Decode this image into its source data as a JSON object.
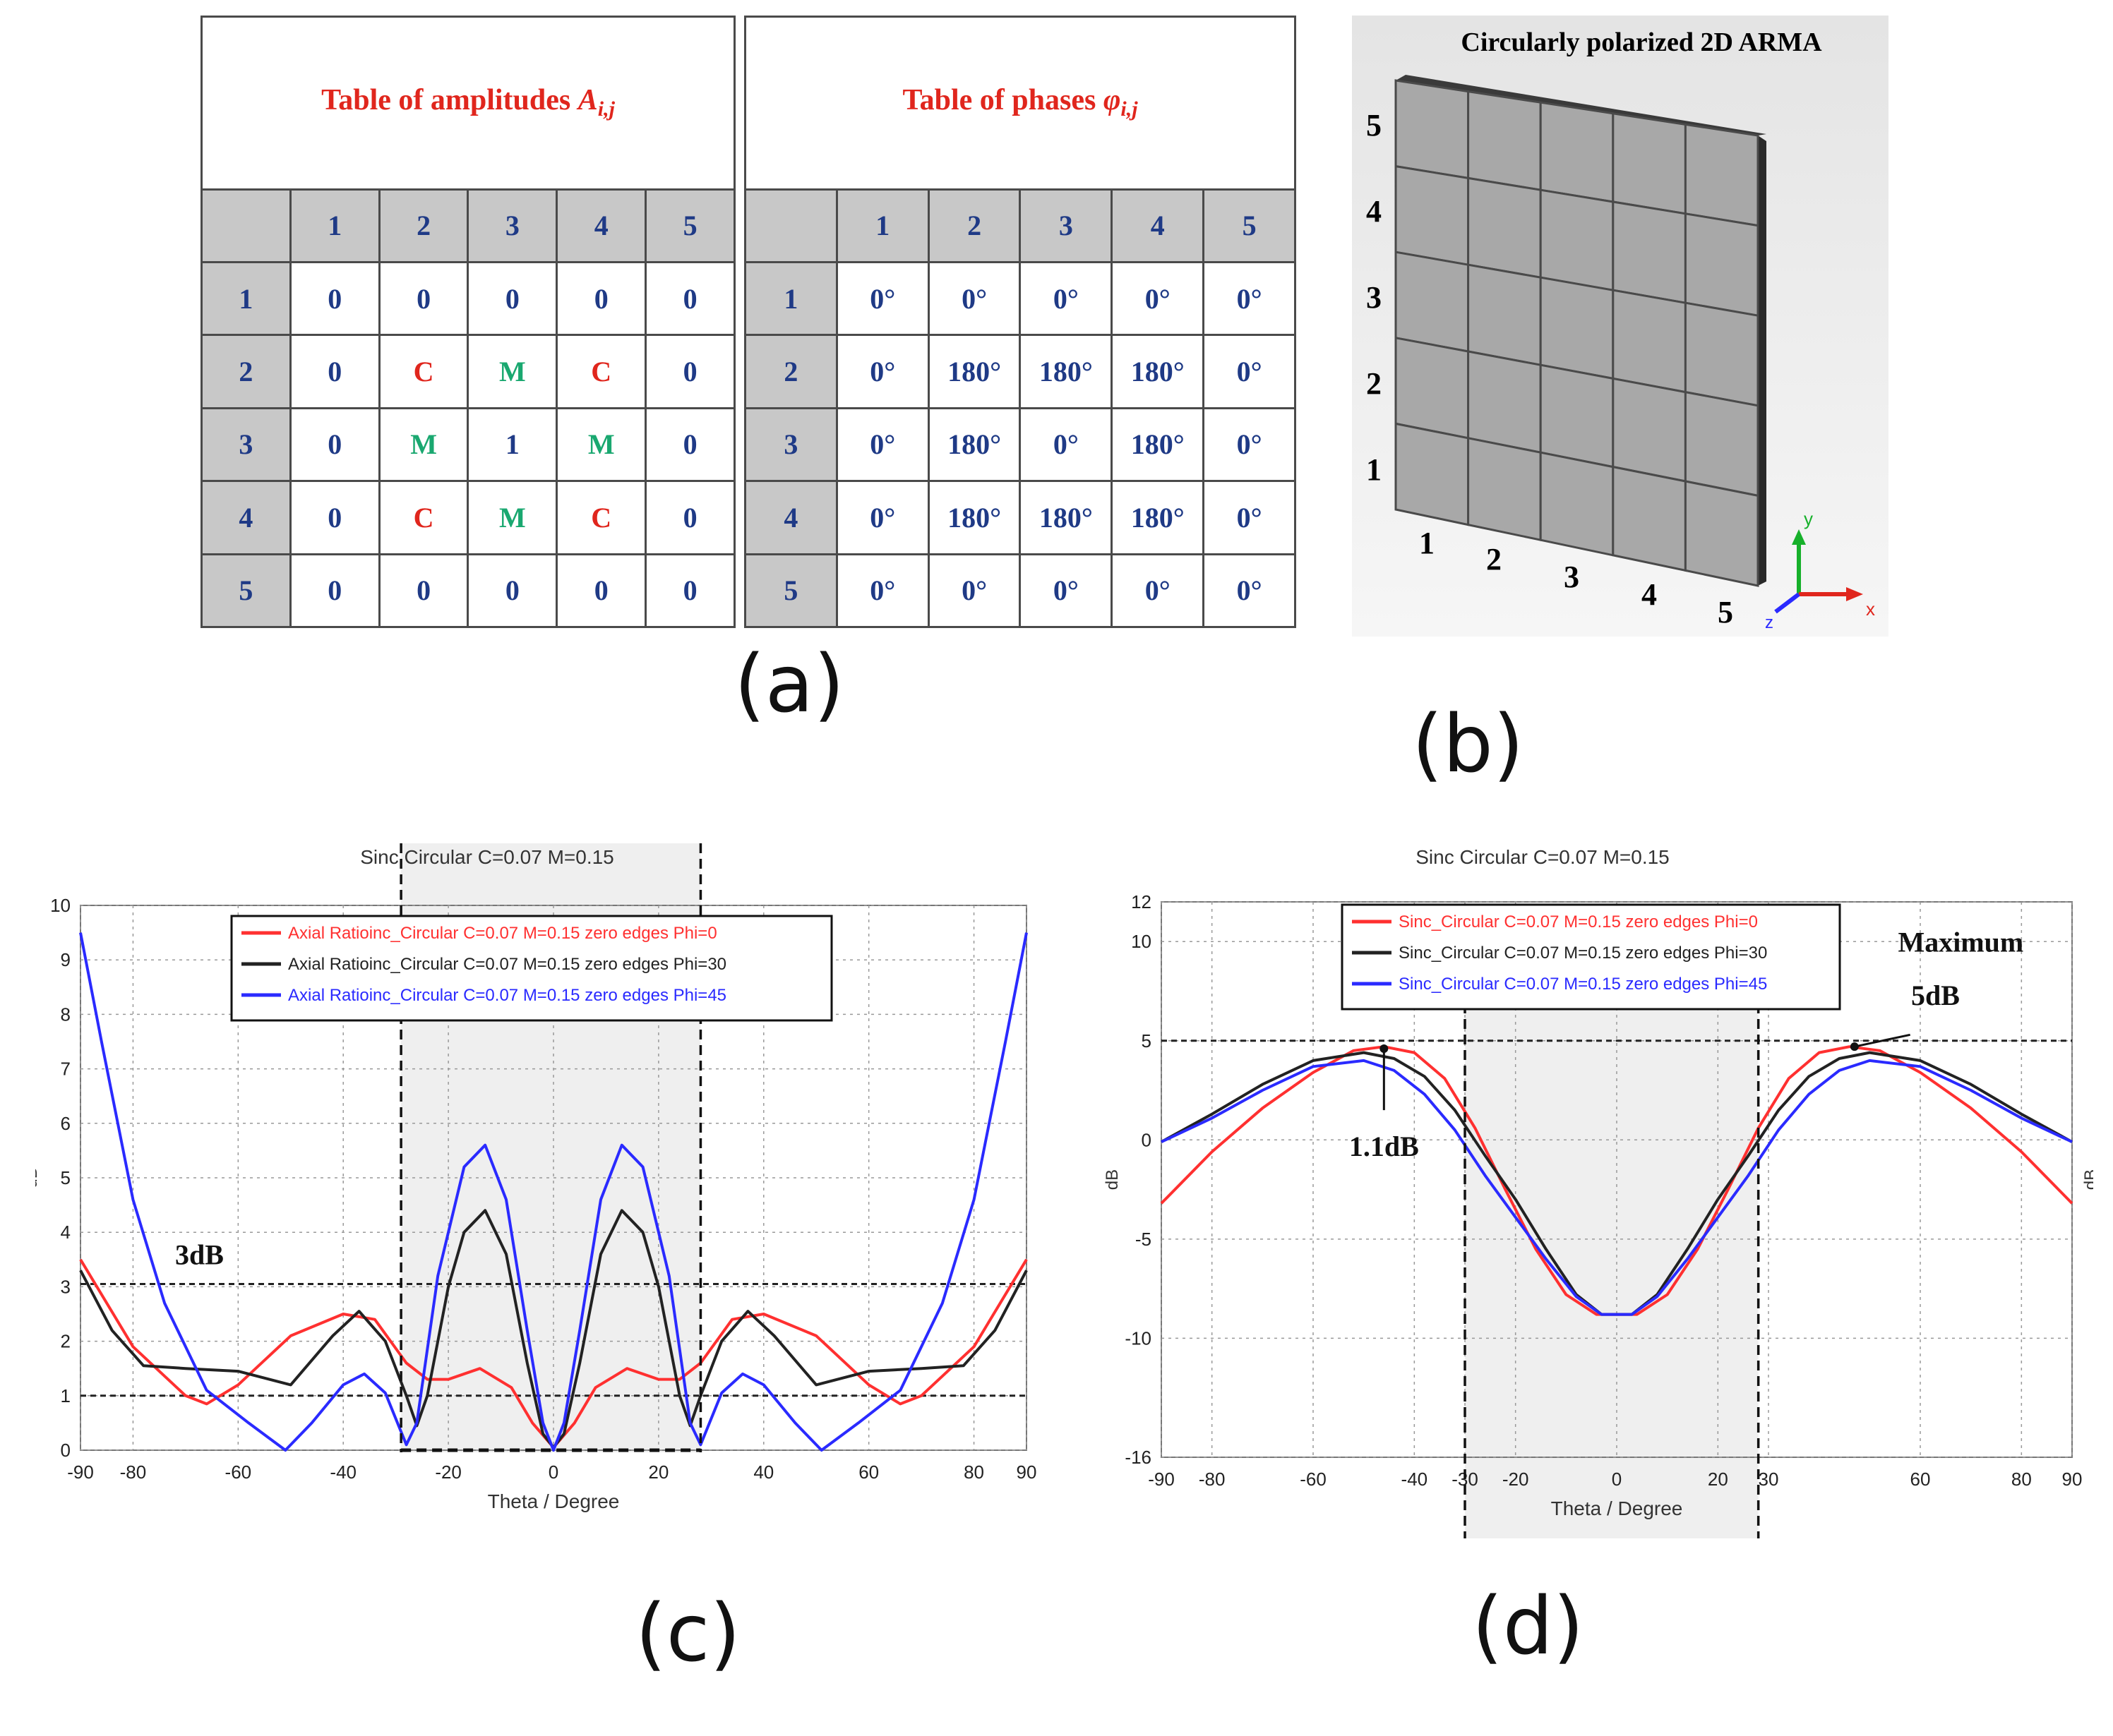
{
  "panel_a": {
    "amp_title": "Table of  amplitudes",
    "amp_symbol": "A",
    "amp_sub": "i,j",
    "phase_title": "Table of  phases",
    "phase_symbol": "φ",
    "phase_sub": "i,j",
    "col_headers": [
      "1",
      "2",
      "3",
      "4",
      "5"
    ],
    "row_headers": [
      "1",
      "2",
      "3",
      "4",
      "5"
    ],
    "amplitudes": [
      [
        "0",
        "0",
        "0",
        "0",
        "0"
      ],
      [
        "0",
        "C",
        "M",
        "C",
        "0"
      ],
      [
        "0",
        "M",
        "1",
        "M",
        "0"
      ],
      [
        "0",
        "C",
        "M",
        "C",
        "0"
      ],
      [
        "0",
        "0",
        "0",
        "0",
        "0"
      ]
    ],
    "phases": [
      [
        "0°",
        "0°",
        "0°",
        "0°",
        "0°"
      ],
      [
        "0°",
        "180°",
        "180°",
        "180°",
        "0°"
      ],
      [
        "0°",
        "180°",
        "0°",
        "180°",
        "0°"
      ],
      [
        "0°",
        "180°",
        "180°",
        "180°",
        "0°"
      ],
      [
        "0°",
        "0°",
        "0°",
        "0°",
        "0°"
      ]
    ],
    "label": "(a)",
    "colors": {
      "C": "#e0261d",
      "M": "#1aa870",
      "default": "#1f3a86"
    }
  },
  "panel_b": {
    "title": "Circularly polarized 2D ARMA",
    "row_labels": [
      "5",
      "4",
      "3",
      "2",
      "1"
    ],
    "col_labels": [
      "1",
      "2",
      "3",
      "4",
      "5"
    ],
    "axes": {
      "y": "y",
      "x": "x",
      "z": "z"
    },
    "label": "(b)"
  },
  "chart_data": [
    {
      "id": "c",
      "type": "line",
      "title": "Sinc Circular C=0.07 M=0.15",
      "xlabel": "Theta / Degree",
      "ylabel": "dB",
      "xlim": [
        -90,
        90
      ],
      "ylim": [
        0,
        10
      ],
      "xticks": [
        "-90",
        "-80",
        "-60",
        "-40",
        "-20",
        "0",
        "20",
        "40",
        "60",
        "80",
        "90"
      ],
      "yticks": [
        "0",
        "1",
        "2",
        "3",
        "4",
        "5",
        "6",
        "7",
        "8",
        "9",
        "10"
      ],
      "grid": true,
      "legend_position": "top-center",
      "series": [
        {
          "name": "Axial Ratioinc_Circular C=0.07 M=0.15 zero edges Phi=0",
          "color": "#ff3030",
          "x": [
            -90,
            -80,
            -70,
            -66,
            -60,
            -50,
            -40,
            -34,
            -28,
            -24,
            -20,
            -14,
            -8,
            -4,
            0,
            4,
            8,
            14,
            20,
            24,
            28,
            34,
            40,
            50,
            60,
            66,
            70,
            80,
            90
          ],
          "y": [
            3.5,
            1.9,
            1.0,
            0.85,
            1.2,
            2.1,
            2.5,
            2.4,
            1.6,
            1.3,
            1.3,
            1.5,
            1.15,
            0.5,
            0.05,
            0.5,
            1.15,
            1.5,
            1.3,
            1.3,
            1.6,
            2.4,
            2.5,
            2.1,
            1.2,
            0.85,
            1.0,
            1.9,
            3.5
          ]
        },
        {
          "name": "Axial Ratioinc_Circular C=0.07 M=0.15 zero edges Phi=30",
          "color": "#222222",
          "x": [
            -90,
            -84,
            -78,
            -70,
            -60,
            -50,
            -42,
            -37,
            -32,
            -28,
            -26,
            -24,
            -20,
            -17,
            -13,
            -9,
            -5,
            -2,
            0,
            2,
            5,
            9,
            13,
            17,
            20,
            24,
            26,
            28,
            32,
            37,
            42,
            50,
            60,
            70,
            78,
            84,
            90
          ],
          "y": [
            3.3,
            2.2,
            1.55,
            1.5,
            1.45,
            1.2,
            2.1,
            2.55,
            2.0,
            1.0,
            0.45,
            1.0,
            3.0,
            4.0,
            4.4,
            3.6,
            1.6,
            0.3,
            0.05,
            0.3,
            1.6,
            3.6,
            4.4,
            4.0,
            3.0,
            1.0,
            0.45,
            1.0,
            2.0,
            2.55,
            2.1,
            1.2,
            1.45,
            1.5,
            1.55,
            2.2,
            3.3
          ]
        },
        {
          "name": "Axial Ratioinc_Circular C=0.07 M=0.15 zero edges Phi=45",
          "color": "#2a2aff",
          "x": [
            -90,
            -86,
            -80,
            -74,
            -66,
            -58,
            -51,
            -46,
            -40,
            -36,
            -32,
            -28,
            -26,
            -22,
            -17,
            -13,
            -9,
            -5,
            -2,
            0,
            2,
            5,
            9,
            13,
            17,
            22,
            26,
            28,
            32,
            36,
            40,
            46,
            51,
            58,
            66,
            74,
            80,
            86,
            90
          ],
          "y": [
            9.5,
            7.5,
            4.6,
            2.7,
            1.1,
            0.5,
            0.0,
            0.5,
            1.2,
            1.4,
            1.05,
            0.1,
            0.5,
            3.2,
            5.2,
            5.6,
            4.6,
            2.2,
            0.5,
            0.0,
            0.5,
            2.2,
            4.6,
            5.6,
            5.2,
            3.2,
            0.5,
            0.1,
            1.05,
            1.4,
            1.2,
            0.5,
            0.0,
            0.5,
            1.1,
            2.7,
            4.6,
            7.5,
            9.5
          ]
        }
      ],
      "reference_lines": [
        {
          "y": 3.05,
          "label": "3dB"
        },
        {
          "y": 1.0,
          "label": ""
        }
      ],
      "highlight_range": [
        -29,
        28
      ],
      "label": "(c)"
    },
    {
      "id": "d",
      "type": "line",
      "title": "Sinc Circular C=0.07 M=0.15",
      "xlabel": "Theta / Degree",
      "ylabel": "dB",
      "xlim": [
        -90,
        90
      ],
      "ylim": [
        -16,
        12
      ],
      "xticks": [
        "-90",
        "-80",
        "-60",
        "-40",
        "-30",
        "-20",
        "0",
        "20",
        "30",
        "60",
        "80",
        "90"
      ],
      "yticks": [
        "-16",
        "-10",
        "-5",
        "0",
        "5",
        "10",
        "12"
      ],
      "grid": true,
      "legend_position": "top-center",
      "series": [
        {
          "name": "Sinc_Circular C=0.07 M=0.15 zero edges Phi=0",
          "color": "#ff3030",
          "x": [
            -90,
            -80,
            -70,
            -60,
            -52,
            -46,
            -40,
            -34,
            -28,
            -22,
            -16,
            -10,
            -4,
            0,
            4,
            10,
            16,
            22,
            28,
            34,
            40,
            46,
            52,
            60,
            70,
            80,
            90
          ],
          "y": [
            -3.2,
            -0.6,
            1.6,
            3.4,
            4.5,
            4.7,
            4.4,
            3.1,
            0.6,
            -2.5,
            -5.5,
            -7.8,
            -8.8,
            -8.8,
            -8.8,
            -7.8,
            -5.5,
            -2.5,
            0.6,
            3.1,
            4.4,
            4.7,
            4.5,
            3.4,
            1.6,
            -0.6,
            -3.2
          ]
        },
        {
          "name": "Sinc_Circular C=0.07 M=0.15 zero edges Phi=30",
          "color": "#222222",
          "x": [
            -90,
            -80,
            -70,
            -60,
            -50,
            -44,
            -38,
            -32,
            -26,
            -20,
            -14,
            -8,
            -3,
            0,
            3,
            8,
            14,
            20,
            26,
            32,
            38,
            44,
            50,
            60,
            70,
            80,
            90
          ],
          "y": [
            -0.1,
            1.3,
            2.8,
            4.0,
            4.4,
            4.1,
            3.2,
            1.5,
            -0.8,
            -3.0,
            -5.5,
            -7.8,
            -8.8,
            -8.8,
            -8.8,
            -7.8,
            -5.5,
            -3.0,
            -0.8,
            1.5,
            3.2,
            4.1,
            4.4,
            4.0,
            2.8,
            1.3,
            -0.1
          ]
        },
        {
          "name": "Sinc_Circular C=0.07 M=0.15 zero edges Phi=45",
          "color": "#2a2aff",
          "x": [
            -90,
            -80,
            -70,
            -60,
            -50,
            -44,
            -38,
            -32,
            -26,
            -20,
            -14,
            -8,
            -3,
            0,
            3,
            8,
            14,
            20,
            26,
            32,
            38,
            44,
            50,
            60,
            70,
            80,
            90
          ],
          "y": [
            -0.1,
            1.1,
            2.5,
            3.7,
            4.0,
            3.5,
            2.3,
            0.5,
            -1.8,
            -3.9,
            -6.0,
            -7.9,
            -8.8,
            -8.8,
            -8.8,
            -7.9,
            -6.0,
            -3.9,
            -1.8,
            0.5,
            2.3,
            3.5,
            4.0,
            3.7,
            2.5,
            1.1,
            -0.1
          ]
        }
      ],
      "reference_lines": [
        {
          "y": 5,
          "label": ""
        }
      ],
      "highlight_range": [
        -30,
        28
      ],
      "annotations": [
        {
          "text": "1.1dB",
          "x": -46,
          "y": -0.8
        },
        {
          "text": "Maximum",
          "x": 68,
          "y": 9.5
        },
        {
          "text": "5dB",
          "x": 63,
          "y": 6.8
        }
      ],
      "label": "(d)"
    }
  ]
}
